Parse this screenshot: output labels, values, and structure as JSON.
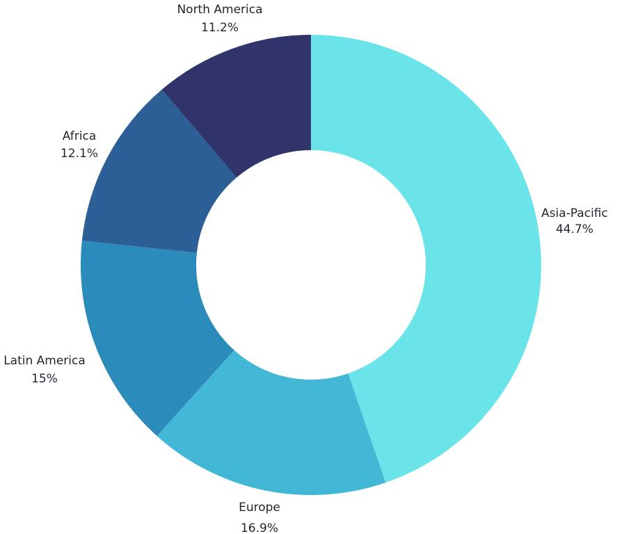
{
  "chart_data": {
    "type": "pie",
    "donut": true,
    "title": "",
    "categories": [
      "Asia-Pacific",
      "Europe",
      "Latin America",
      "Africa",
      "North America"
    ],
    "values": [
      44.7,
      16.9,
      15,
      12.1,
      11.2
    ],
    "value_labels": [
      "44.7%",
      "16.9%",
      "15%",
      "12.1%",
      "11.2%"
    ],
    "colors": [
      "#6ae4e8",
      "#42b8d6",
      "#2b8bbb",
      "#2d5f97",
      "#30346b"
    ],
    "start_angle_deg": 0,
    "direction": "clockwise",
    "legend": "none"
  }
}
